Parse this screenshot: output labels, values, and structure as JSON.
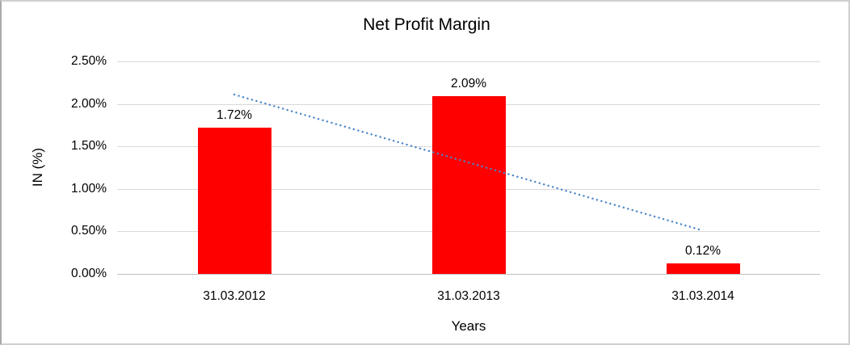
{
  "window": {
    "background": "#ffffff",
    "frame_border_color": "#cfcfcf"
  },
  "chart_data": {
    "type": "bar",
    "title": "Net Profit Margin",
    "xlabel": "Years",
    "ylabel": "IN (%)",
    "categories": [
      "31.03.2012",
      "31.03.2013",
      "31.03.2014"
    ],
    "values": [
      1.72,
      2.09,
      0.12
    ],
    "data_labels": [
      "1.72%",
      "2.09%",
      "0.12%"
    ],
    "ylim": [
      0,
      2.5
    ],
    "yticks": [
      {
        "value": 2.5,
        "label": "2.50%"
      },
      {
        "value": 2.0,
        "label": "2.00%"
      },
      {
        "value": 1.5,
        "label": "1.50%"
      },
      {
        "value": 1.0,
        "label": "1.00%"
      },
      {
        "value": 0.5,
        "label": "0.50%"
      },
      {
        "value": 0.0,
        "label": "0.00%"
      }
    ],
    "grid": "horizontal",
    "legend_position": "none",
    "bar_color": "#ff0000",
    "gridline_color": "#d9d9d9",
    "trendline": {
      "type": "linear",
      "style": "dotted",
      "color": "#4a86c8",
      "start_value": 2.11,
      "end_value": 0.51
    }
  }
}
